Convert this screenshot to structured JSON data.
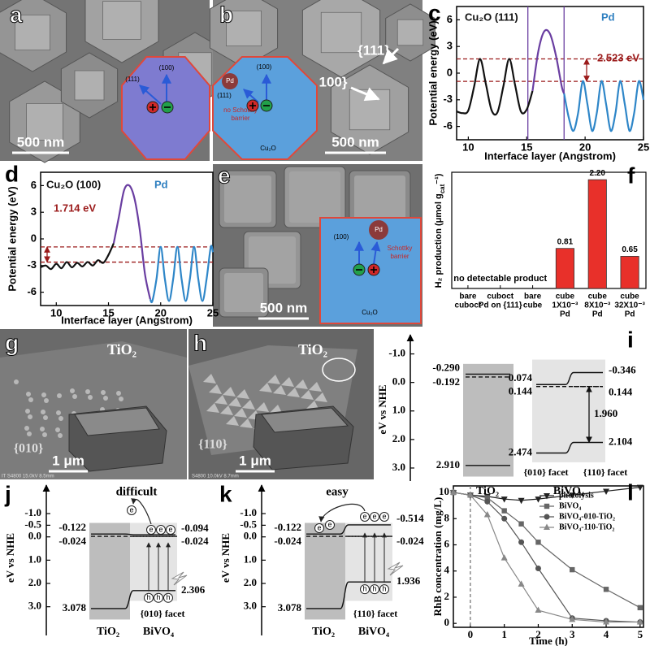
{
  "panel_labels": [
    "a",
    "b",
    "c",
    "d",
    "e",
    "f",
    "g",
    "h",
    "i",
    "j",
    "k",
    "l"
  ],
  "carriers": {
    "electron": "e",
    "hole": "h"
  },
  "images": {
    "a": {
      "scale_bar": "500 nm",
      "inset": [
        "(111)",
        "(100)"
      ]
    },
    "b": {
      "scale_bar": "500 nm",
      "facets": [
        "{111}",
        "100}"
      ],
      "inset": [
        "(100)",
        "(111)",
        "Pd",
        "no Schottky",
        "barrier",
        "Cu₂O"
      ]
    },
    "e": {
      "scale_bar": "500 nm",
      "inset": [
        "(100)",
        "Pd",
        "Schottky",
        "barrier",
        "Cu₂O"
      ]
    },
    "g": {
      "scale_bar": "1 μm",
      "labels": [
        "TiO₂",
        "{010}"
      ],
      "footer": "IT S4800 15.0kV 8.5mm"
    },
    "h": {
      "scale_bar": "1 μm",
      "labels": [
        "TiO₂",
        "{110}"
      ],
      "footer": "S4800 10.0kV 8.7mm"
    }
  },
  "chart_data": [
    {
      "type": "line",
      "annotations": [
        "Cu₂O (111)",
        "Pd",
        "2.523 eV"
      ],
      "xlabel": "Interface layer (Angstrom)",
      "ylabel": "Potential energy (eV)",
      "xlim": [
        9,
        25
      ],
      "ylim": [
        -7.5,
        7.5
      ],
      "xticks": [
        10,
        15,
        20,
        25
      ],
      "yticks": [
        -6,
        -3,
        0,
        3,
        6
      ],
      "hlines": [
        1.6,
        -0.923
      ],
      "vlines": [
        15.1,
        18.2
      ],
      "series": [
        {
          "color": "#111111",
          "x": [
            9,
            9.5,
            10,
            10.5,
            11,
            11.5,
            12,
            12.5,
            13,
            13.5,
            14,
            14.5,
            15,
            15.5
          ],
          "values": [
            -4.3,
            -4.5,
            -4.2,
            -1.5,
            1.6,
            -1.2,
            -4.2,
            -4.4,
            -1.5,
            1.6,
            -1.3,
            -4.3,
            -4.1,
            -2.0
          ]
        },
        {
          "color": "#6a3ea1",
          "x": [
            15.5,
            16,
            16.5,
            17,
            17.5,
            18,
            18.2
          ],
          "values": [
            -2.0,
            2.5,
            4.7,
            4.4,
            2.0,
            -1.5,
            -2.3
          ]
        },
        {
          "color": "#2e86c8",
          "x": [
            18.2,
            18.6,
            19,
            19.4,
            19.8,
            20.2,
            20.6,
            21,
            21.4,
            21.8,
            22.2,
            22.6,
            23,
            23.4,
            23.8,
            24.2,
            24.6,
            25
          ],
          "values": [
            -2.3,
            -5,
            -6.5,
            -4.5,
            -0.9,
            -3.5,
            -6.5,
            -4.5,
            -0.9,
            -3.5,
            -6.5,
            -4.5,
            -0.9,
            -3.5,
            -6.5,
            -4.5,
            -0.9,
            -3
          ]
        }
      ]
    },
    {
      "type": "line",
      "annotations": [
        "Cu₂O (100)",
        "Pd",
        "1.714 eV"
      ],
      "xlabel": "Interface layer (Angstrom)",
      "ylabel": "Potential energy (eV)",
      "xlim": [
        8.5,
        25
      ],
      "ylim": [
        -7.5,
        7.5
      ],
      "xticks": [
        10,
        15,
        20,
        25
      ],
      "yticks": [
        -6,
        -3,
        0,
        3,
        6
      ],
      "hlines": [
        -0.9,
        -2.614
      ],
      "series": [
        {
          "color": "#111111",
          "x": [
            8.5,
            9,
            9.5,
            10,
            10.5,
            11,
            11.5,
            12,
            12.5,
            13,
            13.5,
            14,
            14.5,
            15,
            15.5
          ],
          "values": [
            -3.2,
            -3,
            -3.4,
            -2.8,
            -3.3,
            -2.6,
            -3.2,
            -2.7,
            -3.1,
            -2.6,
            -3,
            -2.4,
            -2.7,
            -1.8,
            -0.5
          ]
        },
        {
          "color": "#6a3ea1",
          "x": [
            15.5,
            16,
            16.5,
            17,
            17.5,
            18,
            18.5,
            19
          ],
          "values": [
            -0.5,
            2.5,
            5.5,
            6,
            4.5,
            1,
            -4,
            -6.8
          ]
        },
        {
          "color": "#2e86c8",
          "x": [
            19,
            19.2,
            19.6,
            20,
            20.4,
            20.8,
            21.2,
            21.6,
            22,
            22.4,
            22.8,
            23.2,
            23.6,
            24,
            24.4,
            24.8,
            25
          ],
          "values": [
            -6.8,
            -7,
            -4.5,
            -0.9,
            -4.5,
            -7,
            -4.5,
            -0.9,
            -4.5,
            -7,
            -4.5,
            -0.9,
            -4.5,
            -7,
            -4.5,
            -0.9,
            -1.5
          ]
        }
      ]
    },
    {
      "type": "bar",
      "ylabel": [
        "H₂ production (μmol g",
        "cat",
        "⁻¹)"
      ],
      "categories": [
        [
          "bare",
          "cuboct"
        ],
        [
          "cuboct",
          "Pd on {111}"
        ],
        [
          "bare",
          "cube"
        ],
        [
          "cube",
          "1X10⁻³",
          "Pd"
        ],
        [
          "cube",
          "8X10⁻³",
          "Pd"
        ],
        [
          "cube",
          "32X10⁻³",
          "Pd"
        ]
      ],
      "values": [
        null,
        null,
        null,
        0.81,
        2.2,
        0.65
      ],
      "value_labels": [
        null,
        null,
        null,
        "0.81",
        "2.20",
        "0.65"
      ],
      "ylim": [
        0,
        2.35
      ],
      "color": "#e8302a",
      "annotation": "no detectable product"
    },
    {
      "type": "line",
      "xlabel": "Time (h)",
      "ylabel": "RhB concentration (mg/L)",
      "xlim": [
        -0.5,
        5.1
      ],
      "ylim": [
        -0.3,
        10.5
      ],
      "xticks": [
        0,
        1,
        2,
        3,
        4,
        5
      ],
      "yticks": [
        0,
        2,
        4,
        6,
        8,
        10
      ],
      "vlines": [
        0
      ],
      "legend": "upper right",
      "x": [
        -0.5,
        0,
        0.5,
        1,
        1.5,
        2,
        3,
        4,
        5
      ],
      "series": [
        {
          "name": "photolysis",
          "color": "#222222",
          "marker": "triangle-down",
          "values": [
            10,
            9.8,
            9.7,
            9.5,
            9.4,
            9.5,
            9.8,
            10.1,
            10.4
          ]
        },
        {
          "name": "BiVO₄",
          "color": "#666666",
          "marker": "square",
          "values": [
            10,
            9.8,
            9.6,
            8.6,
            7.6,
            6.2,
            4.1,
            2.6,
            1.2
          ]
        },
        {
          "name": "BiVO₄-010-TiO₂",
          "color": "#555555",
          "marker": "circle",
          "values": [
            10,
            9.8,
            9.3,
            8.0,
            6.2,
            4.2,
            0.4,
            0.2,
            0.1
          ]
        },
        {
          "name": "BiVO₄-110-TiO₂",
          "color": "#888888",
          "marker": "triangle-up",
          "values": [
            10,
            9.8,
            8.3,
            5.0,
            3.0,
            1.0,
            0.3,
            0.1,
            0.1
          ]
        }
      ]
    }
  ],
  "band_diagrams": [
    {
      "ylim": [
        -1.5,
        3.4
      ],
      "yticks": [
        {
          "value": -1,
          "label": "-1.0"
        },
        {
          "value": 0,
          "label": "0.0"
        },
        {
          "value": 1,
          "label": "1.0"
        },
        {
          "value": 2,
          "label": "2.0"
        },
        {
          "value": 3,
          "label": "3.0"
        }
      ],
      "ylabel": "eV vs NHE",
      "materials": [
        "TiO₂",
        "BiVO₄"
      ],
      "facets": [
        "{010} facet",
        "{110} facet"
      ],
      "levels": [
        -0.29,
        -0.192,
        2.91,
        0.074,
        0.144,
        2.474,
        -0.346,
        0.144,
        2.104
      ],
      "level_labels": [
        "-0.290",
        "-0.192",
        "2.910",
        "0.074",
        "0.144",
        "2.474",
        "-0.346",
        "0.144",
        "2.104"
      ],
      "gap": 1.96,
      "gap_label": "1.960"
    },
    {
      "ylim": [
        -1.7,
        3.5
      ],
      "yticks": [
        {
          "value": -1,
          "label": "-1.0"
        },
        {
          "value": -0.5,
          "label": "-0.5"
        },
        {
          "value": 0,
          "label": "0.0"
        },
        {
          "value": 1,
          "label": "1.0"
        },
        {
          "value": 2,
          "label": "2.0"
        },
        {
          "value": 3,
          "label": "3.0"
        }
      ],
      "ylabel": "eV vs NHE",
      "note": "difficult",
      "materials": [
        "TiO₂",
        "BiVO₄"
      ],
      "facets": [
        "{010} facet"
      ],
      "levels": [
        -0.122,
        -0.024,
        3.078,
        -0.094,
        -0.024,
        2.306
      ],
      "level_labels": [
        "-0.122",
        "-0.024",
        "3.078",
        "-0.094",
        "-0.024",
        "2.306"
      ]
    },
    {
      "ylim": [
        -1.7,
        3.5
      ],
      "yticks": [
        {
          "value": -1,
          "label": "-1.0"
        },
        {
          "value": -0.5,
          "label": "-0.5"
        },
        {
          "value": 0,
          "label": "0.0"
        },
        {
          "value": 1,
          "label": "1.0"
        },
        {
          "value": 2,
          "label": "2.0"
        },
        {
          "value": 3,
          "label": "3.0"
        }
      ],
      "ylabel": "eV vs NHE",
      "note": "easy",
      "materials": [
        "TiO₂",
        "BiVO₄"
      ],
      "facets": [
        "{110} facet"
      ],
      "levels": [
        -0.122,
        -0.024,
        3.078,
        -0.514,
        -0.024,
        1.936
      ],
      "level_labels": [
        "-0.122",
        "-0.024",
        "3.078",
        "-0.514",
        "-0.024",
        "1.936"
      ]
    }
  ]
}
